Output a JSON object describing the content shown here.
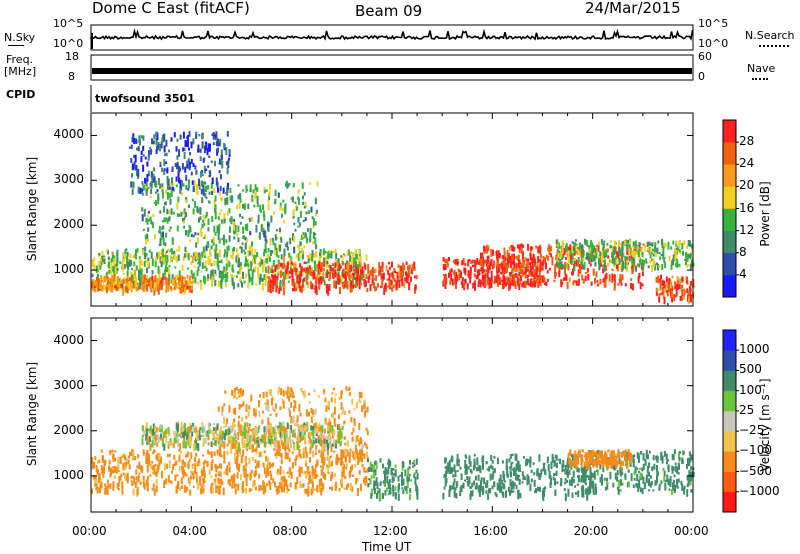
{
  "header": {
    "radar": "Dome C East (fitACF)",
    "beam": "Beam 09",
    "date": "24/Mar/2015"
  },
  "summary": {
    "nsky_label": "N.Sky",
    "nsky_ticks": [
      "10^5",
      "10^0"
    ],
    "nsearch_label": "N.Search",
    "nsearch_ticks": [
      "10^5",
      "10^0"
    ],
    "freq_label": "Freq.",
    "freq_unit": "[MHz]",
    "freq_ticks": [
      "18",
      "8"
    ],
    "nave_label": "Nave",
    "nave_ticks": [
      "60",
      "0"
    ],
    "cpid_label": "CPID",
    "cpid_value": "twofsound 3501"
  },
  "colors": {
    "power": [
      "#1a1aff",
      "#2e4fa8",
      "#3f8c6a",
      "#36b43a",
      "#f0d020",
      "#f59a1a",
      "#f06010",
      "#ff2020"
    ],
    "velocity": [
      "#ff1a1a",
      "#ff5a10",
      "#f78c1a",
      "#f2c24a",
      "#c8c8b8",
      "#6cc43a",
      "#3f8c6a",
      "#2e4fa8",
      "#2222ff"
    ]
  },
  "chart_data": [
    {
      "type": "heatmap",
      "name": "power",
      "ylabel": "Slant Range [km]",
      "yticks": [
        1000,
        2000,
        3000,
        4000
      ],
      "ylim": [
        200,
        4500
      ],
      "xlim": [
        0,
        24
      ],
      "colorbar_label": "Power [dB]",
      "colorbar_ticks": [
        "28",
        "24",
        "20",
        "16",
        "12",
        "8",
        "4"
      ],
      "colorbar_range": [
        0,
        30
      ],
      "bands": [
        {
          "t0": 0.0,
          "t1": 11.0,
          "r0": 700,
          "r1": 1500,
          "v": 14
        },
        {
          "t0": 0.0,
          "t1": 4.0,
          "r0": 600,
          "r1": 900,
          "v": 22
        },
        {
          "t0": 7.0,
          "t1": 13.0,
          "r0": 600,
          "r1": 1200,
          "v": 27
        },
        {
          "t0": 2.0,
          "t1": 9.0,
          "r0": 1500,
          "r1": 3000,
          "v": 12
        },
        {
          "t0": 1.5,
          "t1": 5.5,
          "r0": 2800,
          "r1": 4100,
          "v": 6
        },
        {
          "t0": 14.0,
          "t1": 18.0,
          "r0": 700,
          "r1": 1300,
          "v": 28
        },
        {
          "t0": 15.5,
          "t1": 22.0,
          "r0": 700,
          "r1": 1600,
          "v": 27
        },
        {
          "t0": 18.5,
          "t1": 24.0,
          "r0": 1100,
          "r1": 1700,
          "v": 13
        },
        {
          "t0": 22.5,
          "t1": 24.0,
          "r0": 400,
          "r1": 900,
          "v": 25
        }
      ]
    },
    {
      "type": "heatmap",
      "name": "velocity",
      "ylabel": "Slant Range [km]",
      "yticks": [
        1000,
        2000,
        3000,
        4000
      ],
      "ylim": [
        200,
        4500
      ],
      "xlim": [
        0,
        24
      ],
      "xlabel": "Time UT",
      "xticks": [
        "00:00",
        "04:00",
        "08:00",
        "12:00",
        "16:00",
        "20:00",
        "00:00"
      ],
      "colorbar_label": "Velocity [m s⁻¹]",
      "colorbar_ticks": [
        "1000",
        "500",
        "100",
        "25",
        "−25",
        "−100",
        "−500",
        "−1000"
      ],
      "colorbar_range": [
        -1250,
        1250
      ],
      "bands": [
        {
          "t0": 0.0,
          "t1": 11.0,
          "r0": 700,
          "r1": 1600,
          "v": -200
        },
        {
          "t0": 5.0,
          "t1": 11.0,
          "r0": 1500,
          "r1": 3000,
          "v": -150
        },
        {
          "t0": 2.0,
          "t1": 10.0,
          "r0": 1700,
          "r1": 2200,
          "v": 0
        },
        {
          "t0": 11.0,
          "t1": 13.0,
          "r0": 600,
          "r1": 1400,
          "v": 200
        },
        {
          "t0": 14.0,
          "t1": 20.0,
          "r0": 600,
          "r1": 1500,
          "v": 250
        },
        {
          "t0": 19.5,
          "t1": 24.0,
          "r0": 700,
          "r1": 1600,
          "v": 220
        },
        {
          "t0": 19.0,
          "t1": 21.5,
          "r0": 1300,
          "r1": 1600,
          "v": -250
        }
      ]
    }
  ]
}
